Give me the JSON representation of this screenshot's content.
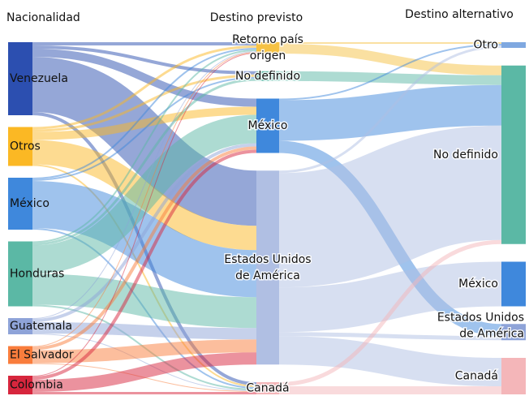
{
  "chart_data": {
    "type": "sankey",
    "columns": [
      "Nacionalidad",
      "Destino previsto",
      "Destino alternativo"
    ],
    "nodes": [
      {
        "name": "Venezuela",
        "column": 0,
        "color": "#2c4fb0"
      },
      {
        "name": "Otros",
        "column": 0,
        "color": "#fbb824"
      },
      {
        "name": "México",
        "column": 0,
        "color": "#3f88dc"
      },
      {
        "name": "Honduras",
        "column": 0,
        "color": "#5bb8a5"
      },
      {
        "name": "Guatemala",
        "column": 0,
        "color": "#8ea3d8"
      },
      {
        "name": "El Salvador",
        "column": 0,
        "color": "#f97d3c"
      },
      {
        "name": "Colombia",
        "column": 0,
        "color": "#d7263d"
      },
      {
        "name": "Retorno país origen",
        "column": 1,
        "color": "#f6c244"
      },
      {
        "name": "No definido",
        "column": 1,
        "color": "#5bb8a5"
      },
      {
        "name": "México",
        "column": 1,
        "color": "#3f88dc"
      },
      {
        "name": "Estados Unidos de América",
        "column": 1,
        "color": "#b0bfe3"
      },
      {
        "name": "Canadá",
        "column": 1,
        "color": "#f4b6b9"
      },
      {
        "name": "Otro",
        "column": 2,
        "color": "#7fa8e0"
      },
      {
        "name": "No definido",
        "column": 2,
        "color": "#5bb8a5"
      },
      {
        "name": "México",
        "column": 2,
        "color": "#3f88dc"
      },
      {
        "name": "Estados Unidos de América",
        "column": 2,
        "color": "#8ea3d8"
      },
      {
        "name": "Canadá",
        "column": 2,
        "color": "#f4b6b9"
      }
    ],
    "links": [
      {
        "source": 0,
        "target": 7,
        "value": 4
      },
      {
        "source": 0,
        "target": 8,
        "value": 4
      },
      {
        "source": 0,
        "target": 9,
        "value": 10
      },
      {
        "source": 0,
        "target": 10,
        "value": 68
      },
      {
        "source": 0,
        "target": 11,
        "value": 4
      },
      {
        "source": 1,
        "target": 7,
        "value": 3
      },
      {
        "source": 1,
        "target": 8,
        "value": 3
      },
      {
        "source": 1,
        "target": 9,
        "value": 10
      },
      {
        "source": 1,
        "target": 10,
        "value": 30
      },
      {
        "source": 1,
        "target": 11,
        "value": 2
      },
      {
        "source": 2,
        "target": 7,
        "value": 2
      },
      {
        "source": 2,
        "target": 8,
        "value": 2
      },
      {
        "source": 2,
        "target": 10,
        "value": 58
      },
      {
        "source": 2,
        "target": 11,
        "value": 2
      },
      {
        "source": 3,
        "target": 7,
        "value": 2
      },
      {
        "source": 3,
        "target": 8,
        "value": 3
      },
      {
        "source": 3,
        "target": 9,
        "value": 35
      },
      {
        "source": 3,
        "target": 10,
        "value": 38
      },
      {
        "source": 3,
        "target": 11,
        "value": 2
      },
      {
        "source": 4,
        "target": 7,
        "value": 1
      },
      {
        "source": 4,
        "target": 9,
        "value": 4
      },
      {
        "source": 4,
        "target": 10,
        "value": 14
      },
      {
        "source": 4,
        "target": 11,
        "value": 1
      },
      {
        "source": 5,
        "target": 7,
        "value": 1
      },
      {
        "source": 5,
        "target": 9,
        "value": 4
      },
      {
        "source": 5,
        "target": 10,
        "value": 16
      },
      {
        "source": 5,
        "target": 11,
        "value": 1
      },
      {
        "source": 6,
        "target": 7,
        "value": 1
      },
      {
        "source": 6,
        "target": 9,
        "value": 4
      },
      {
        "source": 6,
        "target": 10,
        "value": 15
      },
      {
        "source": 6,
        "target": 11,
        "value": 3
      },
      {
        "source": 7,
        "target": 12,
        "value": 2
      },
      {
        "source": 7,
        "target": 13,
        "value": 12
      },
      {
        "source": 8,
        "target": 13,
        "value": 12
      },
      {
        "source": 9,
        "target": 12,
        "value": 2
      },
      {
        "source": 9,
        "target": 13,
        "value": 50
      },
      {
        "source": 9,
        "target": 15,
        "value": 15
      },
      {
        "source": 10,
        "target": 12,
        "value": 3
      },
      {
        "source": 10,
        "target": 13,
        "value": 141
      },
      {
        "source": 10,
        "target": 14,
        "value": 55
      },
      {
        "source": 10,
        "target": 15,
        "value": 5
      },
      {
        "source": 10,
        "target": 16,
        "value": 35
      },
      {
        "source": 11,
        "target": 13,
        "value": 5
      },
      {
        "source": 11,
        "target": 16,
        "value": 10
      }
    ]
  }
}
